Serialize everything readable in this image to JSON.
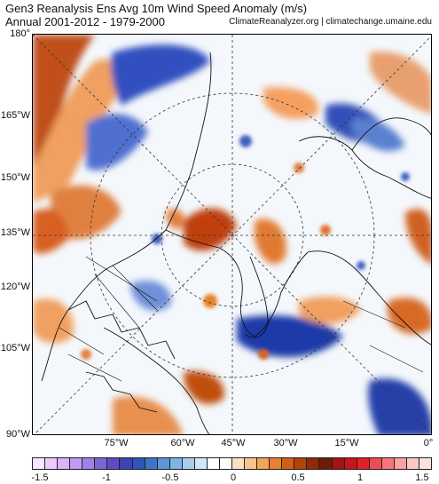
{
  "header": {
    "title": "Gen3 Reanalysis Ens Avg 10m Wind Speed Anomaly (m/s)",
    "subtitle": "Annual 2001-2012 - 1979-2000",
    "credit": "ClimateReanalyzer.org | climatechange.umaine.edu"
  },
  "axes": {
    "lat_labels": [
      "180°",
      "165°W",
      "150°W",
      "135°W",
      "120°W",
      "105°W",
      "90°W"
    ],
    "lon_labels": [
      "75°W",
      "60°W",
      "45°W",
      "30°W",
      "15°W",
      "0°"
    ]
  },
  "colorbar": {
    "tick_labels": [
      "-1.5",
      "-1",
      "-0.5",
      "0",
      "0.5",
      "1",
      "1.5"
    ],
    "colors": [
      "#fbe6ff",
      "#f0c9ff",
      "#dcb2fb",
      "#c29af3",
      "#a37fe8",
      "#7f64d8",
      "#5c4dc6",
      "#3d43b3",
      "#2f55b8",
      "#3d75c8",
      "#5a96d8",
      "#80b4e4",
      "#a9cdef",
      "#d2e6f7",
      "#ffffff",
      "#ffffff",
      "#fce0c4",
      "#f9c48c",
      "#f4a55a",
      "#e8802c",
      "#d25e16",
      "#b4420c",
      "#8f2c08",
      "#6e1c06",
      "#a0141a",
      "#c8141e",
      "#e41e26",
      "#f04a52",
      "#f6787c",
      "#f9a2a4",
      "#fcc6c8",
      "#fde2e4"
    ],
    "min": -1.5,
    "max": 1.5
  }
}
